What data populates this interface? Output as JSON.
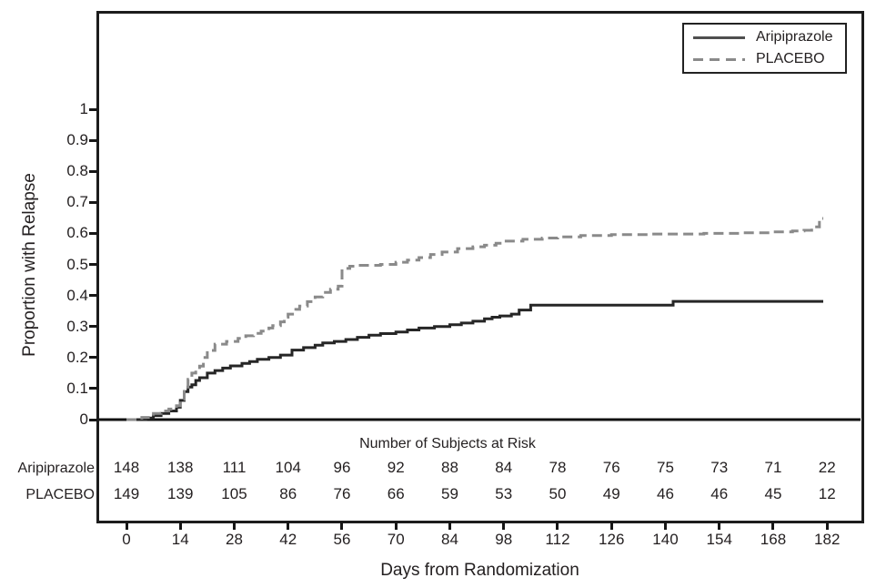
{
  "colors": {
    "frame": "#1c1c1c",
    "text": "#231f20",
    "aripiprazole_line": "#262626",
    "placebo_line": "#8a8a8a",
    "background": "#ffffff"
  },
  "chart_data": {
    "type": "line",
    "subtype": "kaplan-meier-step",
    "title": "",
    "xlabel": "Days from Randomization",
    "ylabel": "Proportion with Relapse",
    "xlim": [
      -7.5,
      191
    ],
    "ylim": [
      0,
      1.05
    ],
    "grid": false,
    "legend_position": "top-right",
    "xticks": [
      0,
      14,
      28,
      42,
      56,
      70,
      84,
      98,
      112,
      126,
      140,
      154,
      168,
      182
    ],
    "xtick_labels": [
      "0",
      "14",
      "28",
      "42",
      "56",
      "70",
      "84",
      "98",
      "112",
      "126",
      "140",
      "154",
      "168",
      "182"
    ],
    "yticks": [
      0,
      0.1,
      0.2,
      0.3,
      0.4,
      0.5,
      0.6,
      0.7,
      0.8,
      0.9,
      1
    ],
    "ytick_labels": [
      "0",
      "0.1",
      "0.2",
      "0.3",
      "0.4",
      "0.5",
      "0.6",
      "0.7",
      "0.8",
      "0.9",
      "1"
    ],
    "legend": {
      "entries": [
        {
          "label": "Aripiprazole",
          "style": "solid",
          "color": "#4f4f4f"
        },
        {
          "label": "PLACEBO",
          "style": "dashed",
          "color": "#8a8a8a"
        }
      ]
    },
    "series": [
      {
        "name": "Aripiprazole",
        "style": "solid",
        "color": "#262626",
        "end_day": 181,
        "points": [
          [
            0,
            0
          ],
          [
            5,
            0.005
          ],
          [
            7,
            0.013
          ],
          [
            9,
            0.02
          ],
          [
            11,
            0.028
          ],
          [
            13,
            0.04
          ],
          [
            14,
            0.062
          ],
          [
            15,
            0.09
          ],
          [
            16,
            0.105
          ],
          [
            17,
            0.112
          ],
          [
            18,
            0.126
          ],
          [
            19,
            0.135
          ],
          [
            21,
            0.15
          ],
          [
            23,
            0.158
          ],
          [
            25,
            0.166
          ],
          [
            27,
            0.173
          ],
          [
            30,
            0.181
          ],
          [
            32,
            0.187
          ],
          [
            34,
            0.194
          ],
          [
            37,
            0.2
          ],
          [
            40,
            0.208
          ],
          [
            43,
            0.224
          ],
          [
            46,
            0.232
          ],
          [
            49,
            0.24
          ],
          [
            51,
            0.247
          ],
          [
            54,
            0.252
          ],
          [
            57,
            0.258
          ],
          [
            60,
            0.265
          ],
          [
            63,
            0.272
          ],
          [
            66,
            0.277
          ],
          [
            70,
            0.282
          ],
          [
            73,
            0.289
          ],
          [
            76,
            0.295
          ],
          [
            80,
            0.3
          ],
          [
            84,
            0.306
          ],
          [
            87,
            0.311
          ],
          [
            90,
            0.317
          ],
          [
            93,
            0.325
          ],
          [
            95,
            0.33
          ],
          [
            97,
            0.334
          ],
          [
            100,
            0.34
          ],
          [
            102,
            0.353
          ],
          [
            105,
            0.369
          ],
          [
            142,
            0.381
          ]
        ]
      },
      {
        "name": "PLACEBO",
        "style": "dashed",
        "color": "#8a8a8a",
        "end_day": 181,
        "points": [
          [
            0,
            0
          ],
          [
            4,
            0.007
          ],
          [
            7,
            0.02
          ],
          [
            9,
            0.028
          ],
          [
            11,
            0.034
          ],
          [
            13,
            0.045
          ],
          [
            14,
            0.065
          ],
          [
            15,
            0.1
          ],
          [
            16,
            0.13
          ],
          [
            17,
            0.15
          ],
          [
            18,
            0.16
          ],
          [
            19,
            0.172
          ],
          [
            20,
            0.2
          ],
          [
            21,
            0.223
          ],
          [
            23,
            0.243
          ],
          [
            26,
            0.252
          ],
          [
            29,
            0.262
          ],
          [
            31,
            0.27
          ],
          [
            33,
            0.278
          ],
          [
            35,
            0.285
          ],
          [
            37,
            0.295
          ],
          [
            38,
            0.303
          ],
          [
            40,
            0.315
          ],
          [
            41,
            0.33
          ],
          [
            42,
            0.34
          ],
          [
            44,
            0.355
          ],
          [
            45,
            0.366
          ],
          [
            47,
            0.38
          ],
          [
            49,
            0.395
          ],
          [
            51,
            0.41
          ],
          [
            53,
            0.42
          ],
          [
            55,
            0.43
          ],
          [
            56,
            0.487
          ],
          [
            58,
            0.494
          ],
          [
            60,
            0.497
          ],
          [
            66,
            0.5
          ],
          [
            70,
            0.507
          ],
          [
            73,
            0.514
          ],
          [
            76,
            0.522
          ],
          [
            79,
            0.532
          ],
          [
            82,
            0.54
          ],
          [
            86,
            0.551
          ],
          [
            90,
            0.557
          ],
          [
            93,
            0.562
          ],
          [
            96,
            0.568
          ],
          [
            98,
            0.575
          ],
          [
            103,
            0.581
          ],
          [
            108,
            0.585
          ],
          [
            112,
            0.589
          ],
          [
            118,
            0.593
          ],
          [
            126,
            0.596
          ],
          [
            136,
            0.598
          ],
          [
            150,
            0.6
          ],
          [
            160,
            0.602
          ],
          [
            168,
            0.605
          ],
          [
            173,
            0.608
          ],
          [
            176,
            0.61
          ],
          [
            178,
            0.621
          ],
          [
            180,
            0.648
          ]
        ]
      }
    ],
    "at_risk_table": {
      "title": "Number of Subjects at Risk",
      "days": [
        0,
        14,
        28,
        42,
        56,
        70,
        84,
        98,
        112,
        126,
        140,
        154,
        168,
        182
      ],
      "rows": [
        {
          "label": "Aripiprazole",
          "counts": [
            148,
            138,
            111,
            104,
            96,
            92,
            88,
            84,
            78,
            76,
            75,
            73,
            71,
            22
          ]
        },
        {
          "label": "PLACEBO",
          "counts": [
            149,
            139,
            105,
            86,
            76,
            66,
            59,
            53,
            50,
            49,
            46,
            46,
            45,
            12
          ]
        }
      ]
    }
  }
}
